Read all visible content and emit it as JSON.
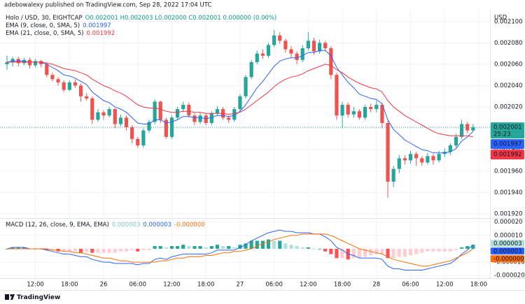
{
  "header": {
    "publisher": "adebowalexy published on TradingView.com, Sep 28, 2022 17:04 UTC"
  },
  "footer": {
    "brand": "TradingView"
  },
  "chart_data": [
    {
      "type": "candlestick",
      "symbol": "Holo / USD, 30, EIGHTCAP",
      "legend_ohlc": "O0.002001 H0.002003 L0.002000 C0.002001 0.000000 (0.00%)",
      "y_unit": "USD",
      "close_label": "0.002001",
      "countdown": "25:23",
      "up_color": "#26a69a",
      "down_color": "#ef5350",
      "categories": [
        null,
        null,
        null,
        null,
        null,
        "12:00",
        null,
        null,
        null,
        null,
        null,
        "18:00",
        null,
        null,
        null,
        null,
        null,
        "26",
        null,
        null,
        null,
        null,
        null,
        "06:00",
        null,
        null,
        null,
        null,
        null,
        "12:00",
        null,
        null,
        null,
        null,
        null,
        "18:00",
        null,
        null,
        null,
        null,
        null,
        "27",
        null,
        null,
        null,
        null,
        null,
        "06:00",
        null,
        null,
        null,
        null,
        null,
        "12:00",
        null,
        null,
        null,
        null,
        null,
        "18:00",
        null,
        null,
        null,
        null,
        null,
        "28",
        null,
        null,
        null,
        null,
        null,
        "06:00",
        null,
        null,
        null,
        null,
        null,
        "12:00",
        null,
        null,
        null,
        null,
        null,
        "18:00"
      ],
      "open": [
        0.00206,
        0.002062,
        0.002065,
        0.002061,
        0.002064,
        0.002059,
        0.002063,
        0.00206,
        0.00205,
        0.002046,
        0.002043,
        0.002036,
        0.002043,
        0.00204,
        0.00203,
        0.002028,
        0.002008,
        0.002015,
        0.002012,
        0.002018,
        0.002004,
        0.00201,
        0.002001,
        0.00199,
        0.001984,
        0.001998,
        0.002006,
        0.002025,
        0.002008,
        0.001992,
        0.00201,
        0.002018,
        0.002022,
        0.002012,
        0.002006,
        0.002012,
        0.002005,
        0.002014,
        0.002018,
        0.00201,
        0.002008,
        0.002018,
        0.00203,
        0.002048,
        0.002062,
        0.00207,
        0.002068,
        0.002078,
        0.002087,
        0.002082,
        0.002074,
        0.00207,
        0.002064,
        0.002075,
        0.002082,
        0.002072,
        0.00208,
        0.002075,
        0.00205,
        0.002012,
        0.002022,
        0.002013,
        0.002016,
        0.00201,
        0.00202,
        0.002018,
        0.002022,
        0.002005,
        0.00195,
        0.001962,
        0.001972,
        0.00197,
        0.001976,
        0.001972,
        0.001968,
        0.001974,
        0.00197,
        0.001976,
        0.001978,
        0.001984,
        0.001992,
        0.002004,
        0.001998,
        null
      ],
      "high": [
        0.002068,
        0.002067,
        0.002067,
        0.002066,
        0.002066,
        0.002065,
        0.002064,
        0.002062,
        0.002052,
        0.002048,
        0.002045,
        0.002045,
        0.002046,
        0.002042,
        0.002033,
        0.00203,
        0.002018,
        0.002017,
        0.00202,
        0.002019,
        0.002013,
        0.002012,
        0.002003,
        0.001992,
        0.002,
        0.002008,
        0.002027,
        0.002026,
        0.00201,
        0.002012,
        0.00202,
        0.002025,
        0.002024,
        0.002014,
        0.002015,
        0.002014,
        0.002016,
        0.002021,
        0.00202,
        0.002012,
        0.00202,
        0.002032,
        0.00205,
        0.002064,
        0.002073,
        0.002074,
        0.00208,
        0.002092,
        0.00209,
        0.002084,
        0.002077,
        0.002072,
        0.002078,
        0.00209,
        0.002085,
        0.002083,
        0.002082,
        0.002077,
        0.002052,
        0.002025,
        0.002024,
        0.00202,
        0.002018,
        0.002022,
        0.002023,
        0.002026,
        0.002024,
        0.002007,
        0.001965,
        0.001975,
        0.001975,
        0.001979,
        0.001978,
        0.001974,
        0.001977,
        0.001976,
        0.001979,
        0.001981,
        0.001986,
        0.001995,
        0.002008,
        0.002006,
        0.002004,
        null
      ],
      "low": [
        0.002055,
        0.002058,
        0.002058,
        0.002059,
        0.002056,
        0.002057,
        0.002057,
        0.002048,
        0.002044,
        0.00204,
        0.002034,
        0.002035,
        0.002038,
        0.002025,
        0.002026,
        0.002004,
        0.002006,
        0.002008,
        0.00201,
        0.002,
        0.002002,
        0.001998,
        0.001986,
        0.001982,
        0.001982,
        0.001996,
        0.002004,
        0.002005,
        0.00199,
        0.00199,
        0.002008,
        0.002015,
        0.00201,
        0.002003,
        0.002004,
        0.002003,
        0.002003,
        0.002012,
        0.002008,
        0.002005,
        0.002006,
        0.002016,
        0.002028,
        0.002046,
        0.00206,
        0.002065,
        0.002066,
        0.002076,
        0.002079,
        0.002071,
        0.002066,
        0.00206,
        0.002062,
        0.002073,
        0.002069,
        0.00207,
        0.002072,
        0.002046,
        0.002008,
        0.002,
        0.00201,
        0.00201,
        0.002008,
        0.002008,
        0.002015,
        0.002015,
        0.002,
        0.001935,
        0.001945,
        0.001958,
        0.001966,
        0.001967,
        0.001965,
        0.001965,
        0.001966,
        0.001966,
        0.001968,
        0.001973,
        0.001975,
        0.001982,
        0.00199,
        0.001995,
        0.001997,
        null
      ],
      "close": [
        0.002062,
        0.002065,
        0.002061,
        0.002064,
        0.002059,
        0.002063,
        0.00206,
        0.00205,
        0.002046,
        0.002043,
        0.002036,
        0.002043,
        0.00204,
        0.00203,
        0.002028,
        0.002008,
        0.002015,
        0.002012,
        0.002018,
        0.002004,
        0.00201,
        0.002001,
        0.00199,
        0.001984,
        0.001998,
        0.002006,
        0.002025,
        0.002008,
        0.001992,
        0.00201,
        0.002018,
        0.002022,
        0.002012,
        0.002006,
        0.002012,
        0.002005,
        0.002014,
        0.002018,
        0.00201,
        0.002008,
        0.002018,
        0.00203,
        0.002048,
        0.002062,
        0.00207,
        0.002068,
        0.002078,
        0.002087,
        0.002082,
        0.002074,
        0.00207,
        0.002064,
        0.002075,
        0.002082,
        0.002072,
        0.00208,
        0.002075,
        0.00205,
        0.002012,
        0.002022,
        0.002013,
        0.002016,
        0.00201,
        0.00202,
        0.002018,
        0.002022,
        0.002005,
        0.00195,
        0.001962,
        0.001972,
        0.00197,
        0.001976,
        0.001972,
        0.001968,
        0.001974,
        0.00197,
        0.001976,
        0.001978,
        0.001984,
        0.001992,
        0.002004,
        0.001998,
        0.002001,
        null
      ],
      "series": [
        {
          "name": "EMA (9, close, 0, SMA, 5)",
          "color": "#2962ff",
          "last_label": "0.001997",
          "values": [
            0.002062,
            0.002063,
            0.002063,
            0.002063,
            0.002062,
            0.002062,
            0.002062,
            0.00206,
            0.002057,
            0.002054,
            0.00205,
            0.002049,
            0.002047,
            0.002044,
            0.002041,
            0.002034,
            0.00203,
            0.002026,
            0.002024,
            0.00202,
            0.002018,
            0.002015,
            0.00201,
            0.002005,
            0.002004,
            0.002004,
            0.002008,
            0.002008,
            0.002005,
            0.002006,
            0.002008,
            0.002011,
            0.002011,
            0.00201,
            0.00201,
            0.002009,
            0.00201,
            0.002012,
            0.002012,
            0.002011,
            0.002012,
            0.002016,
            0.002022,
            0.00203,
            0.002038,
            0.002044,
            0.002051,
            0.002058,
            0.002063,
            0.002065,
            0.002066,
            0.002066,
            0.002068,
            0.002071,
            0.002071,
            0.002073,
            0.002073,
            0.002068,
            0.002057,
            0.00205,
            0.002043,
            0.002038,
            0.002032,
            0.00203,
            0.002028,
            0.002027,
            0.002023,
            0.002008,
            0.001999,
            0.001994,
            0.001989,
            0.001986,
            0.001983,
            0.00198,
            0.001979,
            0.001977,
            0.001977,
            0.001977,
            0.001978,
            0.001981,
            0.001988,
            0.001992,
            0.001997,
            null
          ]
        },
        {
          "name": "EMA (21, close, 0, SMA, 5)",
          "color": "#f23645",
          "last_label": "0.001992",
          "values": [
            0.002062,
            0.002062,
            0.002062,
            0.002062,
            0.002062,
            0.002062,
            0.002062,
            0.002061,
            0.00206,
            0.002058,
            0.002056,
            0.002055,
            0.002054,
            0.002052,
            0.00205,
            0.002046,
            0.002043,
            0.00204,
            0.002038,
            0.002035,
            0.002033,
            0.00203,
            0.002026,
            0.002022,
            0.00202,
            0.002019,
            0.002019,
            0.002018,
            0.002016,
            0.002015,
            0.002015,
            0.002016,
            0.002016,
            0.002015,
            0.002015,
            0.002014,
            0.002014,
            0.002014,
            0.002014,
            0.002013,
            0.002014,
            0.002015,
            0.002018,
            0.002022,
            0.002026,
            0.00203,
            0.002034,
            0.002039,
            0.002043,
            0.002046,
            0.002048,
            0.002049,
            0.002051,
            0.002054,
            0.002056,
            0.002058,
            0.00206,
            0.002059,
            0.002055,
            0.002052,
            0.002048,
            0.002045,
            0.002042,
            0.00204,
            0.002038,
            0.002037,
            0.002034,
            0.002026,
            0.00202,
            0.002016,
            0.002012,
            0.002009,
            0.002006,
            0.002003,
            0.002,
            0.001997,
            0.001995,
            0.001994,
            0.001993,
            0.001993,
            0.001993,
            0.001993,
            0.001992,
            null
          ]
        }
      ],
      "ylim": [
        0.001916,
        0.002111
      ],
      "yticks": [
        {
          "value": 0.0021,
          "label": "0.002100"
        },
        {
          "value": 0.00208,
          "label": "0.002080"
        },
        {
          "value": 0.00206,
          "label": "0.002060"
        },
        {
          "value": 0.00204,
          "label": "0.002040"
        },
        {
          "value": 0.00202,
          "label": "0.002020"
        },
        {
          "value": 0.002,
          "label": "0.002000"
        },
        {
          "value": 0.00198,
          "label": "0.001980"
        },
        {
          "value": 0.00196,
          "label": "0.001960"
        },
        {
          "value": 0.00194,
          "label": "0.001940"
        },
        {
          "value": 0.00192,
          "label": "0.001920"
        }
      ],
      "grid": true
    },
    {
      "type": "macd",
      "title": "MACD (12, 26, close, 9, EMA, EMA)",
      "histogram": {
        "colors": [
          "#26a69a",
          "#b2dfdb",
          "#ff5252",
          "#ffcdd2"
        ],
        "last_label": "0.000003",
        "values": [
          0,
          1e-06,
          1e-06,
          1e-06,
          0,
          0,
          0,
          -1e-06,
          -1e-06,
          -2e-06,
          -2e-06,
          -2e-06,
          -2e-06,
          -3e-06,
          -2e-06,
          -3e-06,
          -3e-06,
          -3e-06,
          -3e-06,
          -3e-06,
          -2e-06,
          -2e-06,
          -1e-06,
          -2e-06,
          -1e-06,
          -1e-06,
          2e-06,
          2e-06,
          1e-06,
          2e-06,
          2e-06,
          3e-06,
          2e-06,
          2e-06,
          2e-06,
          1e-06,
          2e-06,
          3e-06,
          2e-06,
          2e-06,
          1e-06,
          3e-06,
          4e-06,
          6e-06,
          6e-06,
          6e-06,
          7e-06,
          6e-06,
          6e-06,
          4e-06,
          3e-06,
          2e-06,
          1e-06,
          1e-06,
          0,
          0,
          -2e-06,
          -4e-06,
          -7e-06,
          -7e-06,
          -8e-06,
          -7e-06,
          -7e-06,
          -6e-06,
          -5e-06,
          -4e-06,
          -4e-06,
          -7e-06,
          -7e-06,
          -6e-06,
          -6e-06,
          -5e-06,
          -4e-06,
          -3e-06,
          -2e-06,
          -2e-06,
          -2e-06,
          -2e-06,
          -2e-06,
          -1e-06,
          1e-06,
          2e-06,
          3e-06,
          null
        ]
      },
      "macd": {
        "color": "#2962ff",
        "last_label": "0.000003",
        "values": [
          0,
          1e-06,
          1e-06,
          1e-06,
          0,
          0,
          0,
          -1e-06,
          -2e-06,
          -3e-06,
          -4e-06,
          -4e-06,
          -5e-06,
          -6e-06,
          -6e-06,
          -8e-06,
          -9e-06,
          -1e-05,
          -1e-05,
          -1.1e-05,
          -1.1e-05,
          -1.1e-05,
          -1.1e-05,
          -1.2e-05,
          -1.1e-05,
          -1.1e-05,
          -8e-06,
          -7e-06,
          -8e-06,
          -6e-06,
          -5e-06,
          -4e-06,
          -4e-06,
          -4e-06,
          -4e-06,
          -4e-06,
          -3e-06,
          -1e-06,
          -1e-06,
          -1e-06,
          -1e-06,
          1e-06,
          3e-06,
          6e-06,
          8e-06,
          1e-05,
          1.2e-05,
          1.3e-05,
          1.4e-05,
          1.3e-05,
          1.3e-05,
          1.2e-05,
          1.2e-05,
          1.2e-05,
          1.1e-05,
          1.1e-05,
          9e-06,
          6e-06,
          1e-06,
          -1e-06,
          -4e-06,
          -5e-06,
          -7e-06,
          -7e-06,
          -7e-06,
          -7e-06,
          -8e-06,
          -1.3e-05,
          -1.5e-05,
          -1.5e-05,
          -1.6e-05,
          -1.6e-05,
          -1.6e-05,
          -1.6e-05,
          -1.5e-05,
          -1.4e-05,
          -1.3e-05,
          -1.2e-05,
          -1.1e-05,
          -8e-06,
          -4e-06,
          -1e-06,
          3e-06,
          null
        ]
      },
      "signal": {
        "color": "#ff6d00",
        "last_label": "-0.000000",
        "values": [
          0,
          0,
          0,
          0,
          0,
          0,
          0,
          0,
          -1e-06,
          -1e-06,
          -2e-06,
          -2e-06,
          -3e-06,
          -3e-06,
          -4e-06,
          -5e-06,
          -6e-06,
          -7e-06,
          -7e-06,
          -8e-06,
          -9e-06,
          -9e-06,
          -1e-05,
          -1e-05,
          -1e-05,
          -1e-05,
          -1e-05,
          -9e-06,
          -9e-06,
          -8e-06,
          -7e-06,
          -7e-06,
          -6e-06,
          -6e-06,
          -6e-06,
          -5e-06,
          -5e-06,
          -4e-06,
          -3e-06,
          -3e-06,
          -2e-06,
          -2e-06,
          -1e-06,
          0,
          2e-06,
          4e-06,
          5e-06,
          7e-06,
          8e-06,
          9e-06,
          1e-05,
          1e-05,
          1.1e-05,
          1.1e-05,
          1.1e-05,
          1.1e-05,
          1.1e-05,
          1e-05,
          8e-06,
          6e-06,
          4e-06,
          2e-06,
          0,
          -1e-06,
          -2e-06,
          -3e-06,
          -4e-06,
          -6e-06,
          -8e-06,
          -9e-06,
          -1e-05,
          -1.1e-05,
          -1.2e-05,
          -1.3e-05,
          -1.3e-05,
          -1.2e-05,
          -1.1e-05,
          -1e-05,
          -9e-06,
          -7e-06,
          -5e-06,
          -3e-06,
          0,
          null
        ]
      },
      "ylim": [
        -2.2e-05,
        2.3e-05
      ],
      "yticks": [
        {
          "value": 2e-05,
          "label": "0.000020"
        },
        {
          "value": 1e-05,
          "label": "0.000010"
        },
        {
          "value": -1e-05,
          "label": "-0.000010"
        },
        {
          "value": -2e-05,
          "label": "-0.000020"
        }
      ],
      "grid": true
    }
  ]
}
